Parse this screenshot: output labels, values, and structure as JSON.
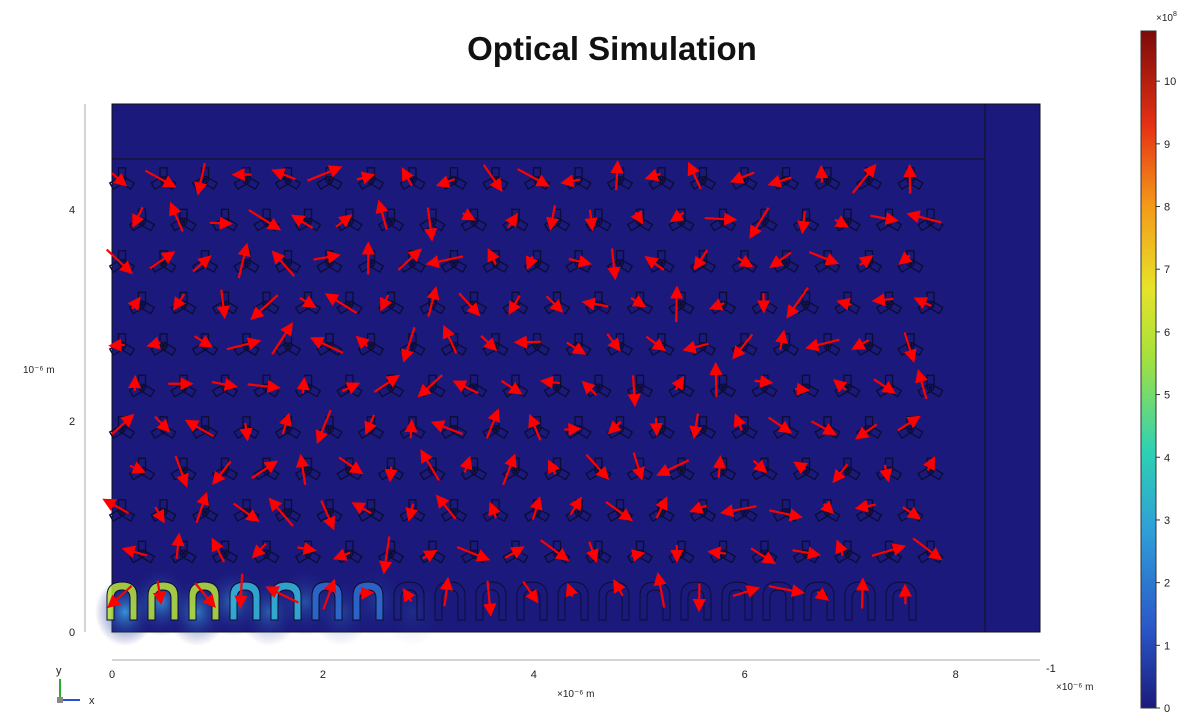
{
  "chart_data": {
    "type": "heatmap",
    "title": "Optical Simulation",
    "xlabel": "×10⁻⁶ m",
    "ylabel": "10⁻⁶ m",
    "xlim": [
      0,
      8.8
    ],
    "ylim": [
      0,
      5.0
    ],
    "x_ticks": [
      "0",
      "2",
      "4",
      "6",
      "8"
    ],
    "x_tick_values": [
      0,
      2,
      4,
      6,
      8
    ],
    "x_extra_tick": "-1",
    "x_extra_unit": "×10⁻⁶ m",
    "y_ticks": [
      "0",
      "2",
      "4"
    ],
    "y_tick_values": [
      0,
      2,
      4
    ],
    "colorbar": {
      "multiplier_base": "×10",
      "multiplier_exp": "8",
      "range": [
        0,
        10.8
      ],
      "ticks": [
        "0",
        "1",
        "2",
        "3",
        "4",
        "5",
        "6",
        "7",
        "8",
        "9",
        "10"
      ],
      "tick_values": [
        0,
        1,
        2,
        3,
        4,
        5,
        6,
        7,
        8,
        9,
        10
      ]
    },
    "background_color": "#1b1a7c",
    "arrow_color": "#ff0000",
    "grid": false,
    "axis_triad": {
      "y": "y",
      "x": "x"
    }
  }
}
